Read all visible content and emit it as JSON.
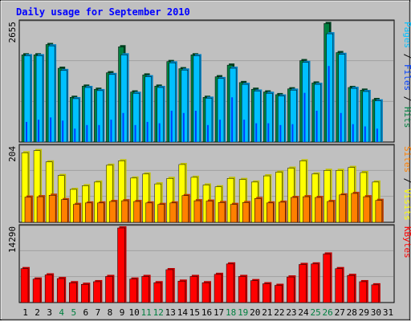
{
  "title": "Daily usage for September 2010",
  "colors": {
    "background": "#c0c0c0",
    "plot_bg": "#c0c0c0",
    "grid": "#a0a0a0",
    "hits": "#008040",
    "hits_side": "#004020",
    "files": "#0040ff",
    "pages": "#00c0ff",
    "pages_side": "#0080c0",
    "visits": "#ffff00",
    "visits_side": "#c0c000",
    "sites": "#ff8000",
    "sites_side": "#c04000",
    "kbytes": "#ff0000",
    "kbytes_side": "#c00000",
    "title": "#0000ff",
    "weekend_label": "#008040",
    "weekday_label": "#000000"
  },
  "right_labels": {
    "top": [
      "Pages",
      "Files",
      "Hits"
    ],
    "middle": [
      "Sites",
      "Visits"
    ],
    "bottom": [
      "KBytes"
    ]
  },
  "chart_data": [
    {
      "type": "bar",
      "panel": "hits-files-pages",
      "ymax_label": "2655",
      "ylim": [
        0,
        2655
      ],
      "grid": true,
      "categories": [
        "1",
        "2",
        "3",
        "4",
        "5",
        "6",
        "7",
        "8",
        "9",
        "10",
        "11",
        "12",
        "13",
        "14",
        "15",
        "16",
        "17",
        "18",
        "19",
        "20",
        "21",
        "22",
        "23",
        "24",
        "25",
        "26",
        "27",
        "28",
        "29",
        "30",
        "31"
      ],
      "weekend_days": [
        4,
        5,
        11,
        12,
        18,
        19,
        25,
        26
      ],
      "series": [
        {
          "name": "Hits",
          "values": [
            1950,
            1950,
            2180,
            1650,
            1000,
            1250,
            1180,
            1550,
            2130,
            1120,
            1500,
            1250,
            1800,
            1640,
            1950,
            1000,
            1460,
            1720,
            1330,
            1180,
            1120,
            1060,
            1190,
            1820,
            1320,
            2650,
            2000,
            1220,
            1160,
            950,
            0
          ]
        },
        {
          "name": "Files",
          "values": [
            450,
            500,
            550,
            480,
            300,
            380,
            380,
            500,
            650,
            380,
            450,
            420,
            700,
            650,
            700,
            380,
            500,
            1000,
            500,
            420,
            420,
            380,
            400,
            1100,
            700,
            1700,
            650,
            400,
            350,
            300,
            0
          ]
        },
        {
          "name": "Pages",
          "values": [
            1930,
            1930,
            2150,
            1600,
            970,
            1220,
            1150,
            1510,
            1950,
            1090,
            1460,
            1220,
            1770,
            1610,
            1930,
            980,
            1420,
            1650,
            1290,
            1140,
            1090,
            1030,
            1160,
            1780,
            1290,
            2420,
            1960,
            1200,
            1130,
            920,
            0
          ]
        }
      ]
    },
    {
      "type": "bar",
      "panel": "visits-sites",
      "ymax_label": "204",
      "ylim": [
        0,
        204
      ],
      "grid": true,
      "categories": [
        "1",
        "2",
        "3",
        "4",
        "5",
        "6",
        "7",
        "8",
        "9",
        "10",
        "11",
        "12",
        "13",
        "14",
        "15",
        "16",
        "17",
        "18",
        "19",
        "20",
        "21",
        "22",
        "23",
        "24",
        "25",
        "26",
        "27",
        "28",
        "29",
        "30",
        "31"
      ],
      "series": [
        {
          "name": "Visits",
          "values": [
            190,
            196,
            165,
            128,
            90,
            100,
            110,
            156,
            168,
            121,
            132,
            105,
            120,
            158,
            123,
            102,
            97,
            120,
            117,
            110,
            127,
            137,
            148,
            168,
            132,
            142,
            142,
            150,
            136,
            110,
            0
          ]
        },
        {
          "name": "Sites",
          "values": [
            69,
            70,
            74,
            62,
            49,
            53,
            53,
            57,
            59,
            57,
            53,
            49,
            53,
            73,
            59,
            58,
            54,
            49,
            54,
            65,
            53,
            55,
            68,
            70,
            68,
            57,
            75,
            79,
            70,
            60,
            0
          ]
        }
      ]
    },
    {
      "type": "bar",
      "panel": "kbytes",
      "ymax_label": "14290",
      "ylim": [
        0,
        14290
      ],
      "grid": true,
      "categories": [
        "1",
        "2",
        "3",
        "4",
        "5",
        "6",
        "7",
        "8",
        "9",
        "10",
        "11",
        "12",
        "13",
        "14",
        "15",
        "16",
        "17",
        "18",
        "19",
        "20",
        "21",
        "22",
        "23",
        "24",
        "25",
        "26",
        "27",
        "28",
        "29",
        "30",
        "31"
      ],
      "series": [
        {
          "name": "KBytes",
          "values": [
            6500,
            4500,
            5300,
            4600,
            3800,
            3500,
            4000,
            5000,
            14290,
            4500,
            5000,
            3800,
            6300,
            4100,
            5000,
            3800,
            5400,
            7400,
            5000,
            4200,
            3600,
            3300,
            4900,
            7300,
            7400,
            9300,
            6500,
            5200,
            4000,
            3400,
            0
          ]
        }
      ]
    }
  ]
}
